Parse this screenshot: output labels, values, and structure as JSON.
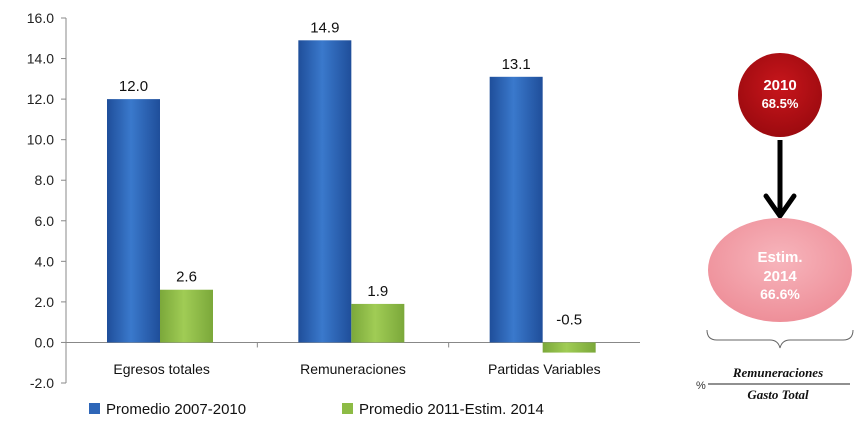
{
  "chart_data": {
    "type": "bar",
    "categories": [
      "Egresos totales",
      "Remuneraciones",
      "Partidas Variables"
    ],
    "series": [
      {
        "name": "Promedio 2007-2010",
        "values": [
          12.0,
          14.9,
          13.1
        ],
        "color": "#2E66B8"
      },
      {
        "name": "Promedio 2011-Estim. 2014",
        "values": [
          2.6,
          1.9,
          -0.5
        ],
        "color": "#8DBB45"
      }
    ],
    "data_labels": [
      [
        "12.0",
        "14.9",
        "13.1"
      ],
      [
        "2.6",
        "1.9",
        "-0.5"
      ]
    ],
    "ylim": [
      -2.0,
      16.0
    ],
    "yticks": [
      "16.0",
      "14.0",
      "12.0",
      "10.0",
      "8.0",
      "6.0",
      "4.0",
      "2.0",
      "0.0",
      "-2.0"
    ],
    "grid": false,
    "legend_position": "bottom",
    "title": "",
    "xlabel": "",
    "ylabel": ""
  },
  "side_diagram": {
    "top_circle": {
      "line1": "2010",
      "line2": "68.5%",
      "color": "#B40F14"
    },
    "bottom_circle": {
      "line1": "Estim.",
      "line2": "2014",
      "line3": "66.6%",
      "color": "#F4A3AB"
    },
    "percent_sign": "%",
    "numerator": "Remuneraciones",
    "denominator": "Gasto Total"
  }
}
